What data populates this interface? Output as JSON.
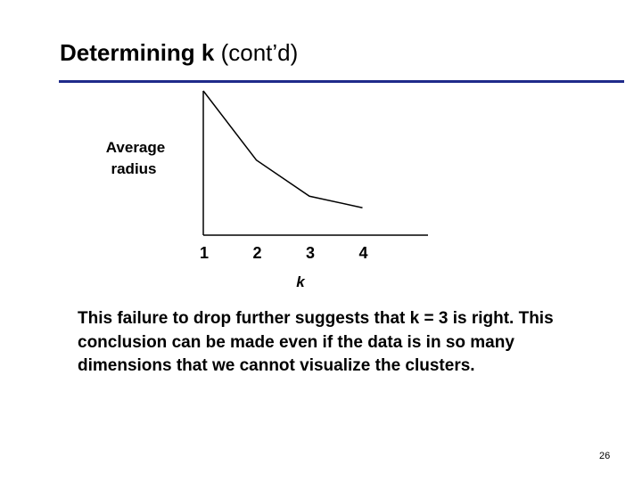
{
  "title": {
    "bold": "Determining k",
    "rest": " (cont’d)"
  },
  "accent_color": "#1f2a8a",
  "chart_data": {
    "type": "line",
    "x": [
      1,
      2,
      3,
      4
    ],
    "series": [
      {
        "values": [
          1.0,
          0.52,
          0.27,
          0.19
        ]
      }
    ],
    "xlabel": "k",
    "ylabel_lines": [
      "Average",
      "radius"
    ],
    "xtick_labels": [
      "1",
      "2",
      "3",
      "4"
    ],
    "ylim": [
      0,
      1
    ],
    "grid": false
  },
  "body_text": "This failure to drop further suggests that k = 3 is right. This conclusion can be made even if the data is in so many dimensions that we cannot visualize the clusters.",
  "page_number": "26"
}
